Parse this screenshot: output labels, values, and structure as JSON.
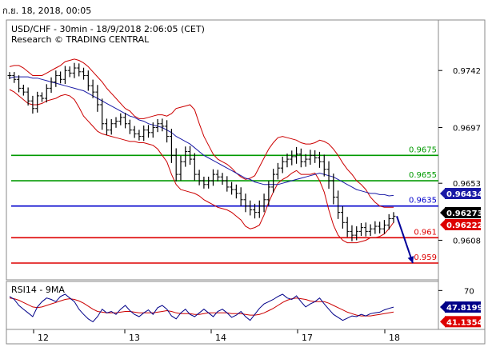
{
  "header": {
    "date_time": "ก.ย. 18, 2018, 00:05"
  },
  "legend": {
    "line1": "USD/CHF - 30min - 18/9/2018 2:06:05 (CET)",
    "line2": "Research © TRADING CENTRAL"
  },
  "colors": {
    "green_level": "#009900",
    "blue_level": "#0000cc",
    "red_level": "#dd0000",
    "bollinger": "#cc0000",
    "moving_average": "#1a1aa6",
    "rsi_line": "#000088",
    "rsi_ma": "#cc0000",
    "price_bars": "#000000",
    "arrow": "#000099"
  },
  "chart_data": {
    "type": "ohlc",
    "symbol": "USD/CHF",
    "timeframe": "30min",
    "ylim": [
      0.9578,
      0.978
    ],
    "y_ticks": [
      "0.9742",
      "0.9697",
      "0.9653",
      "0.9608"
    ],
    "x_ticks": [
      "12",
      "13",
      "14",
      "17",
      "18"
    ],
    "levels": [
      {
        "value": 0.9675,
        "label": "0.9675",
        "kind": "resistance",
        "color": "green"
      },
      {
        "value": 0.9655,
        "label": "0.9655",
        "kind": "resistance",
        "color": "green"
      },
      {
        "value": 0.9635,
        "label": "0.9635",
        "kind": "pivot",
        "color": "blue"
      },
      {
        "value": 0.961,
        "label": "0.961",
        "kind": "support",
        "color": "red"
      },
      {
        "value": 0.959,
        "label": "0.959",
        "kind": "support",
        "color": "red"
      }
    ],
    "price_badges": [
      {
        "value": 0.96434,
        "label": "0.96434",
        "series": "moving-average"
      },
      {
        "value": 0.96273,
        "label": "0.96273",
        "series": "last-price"
      },
      {
        "value": 0.96222,
        "label": "0.96222",
        "series": "lower-band"
      }
    ],
    "close": [
      0.9738,
      0.9735,
      0.9728,
      0.9725,
      0.9718,
      0.9712,
      0.9722,
      0.972,
      0.9728,
      0.9733,
      0.9738,
      0.9735,
      0.9742,
      0.974,
      0.9744,
      0.9741,
      0.9738,
      0.973,
      0.9725,
      0.9715,
      0.97,
      0.9695,
      0.97,
      0.9702,
      0.9705,
      0.97,
      0.9695,
      0.9692,
      0.969,
      0.9695,
      0.9693,
      0.9697,
      0.97,
      0.9698,
      0.969,
      0.9675,
      0.966,
      0.967,
      0.9678,
      0.9672,
      0.966,
      0.9655,
      0.9652,
      0.9655,
      0.966,
      0.9658,
      0.9655,
      0.965,
      0.9648,
      0.9645,
      0.964,
      0.9635,
      0.9632,
      0.963,
      0.9635,
      0.964,
      0.965,
      0.966,
      0.9665,
      0.967,
      0.9672,
      0.9674,
      0.9676,
      0.967,
      0.9672,
      0.9675,
      0.9673,
      0.967,
      0.9664,
      0.9655,
      0.9642,
      0.963,
      0.9622,
      0.9615,
      0.9612,
      0.9615,
      0.9618,
      0.9615,
      0.9617,
      0.9619,
      0.9617,
      0.962,
      0.9625,
      0.9627
    ],
    "range": [
      0.0007,
      0.0007,
      0.0008,
      0.0007,
      0.0009,
      0.001,
      0.0008,
      0.0007,
      0.0008,
      0.0009,
      0.001,
      0.0008,
      0.0009,
      0.0008,
      0.001,
      0.0009,
      0.0008,
      0.001,
      0.0012,
      0.0014,
      0.0012,
      0.001,
      0.0009,
      0.0008,
      0.0008,
      0.0009,
      0.0008,
      0.0008,
      0.0008,
      0.0009,
      0.001,
      0.001,
      0.0009,
      0.001,
      0.0012,
      0.0015,
      0.0014,
      0.0012,
      0.001,
      0.0011,
      0.0012,
      0.0009,
      0.0008,
      0.0008,
      0.001,
      0.0009,
      0.0008,
      0.0009,
      0.001,
      0.001,
      0.0012,
      0.0012,
      0.0011,
      0.0012,
      0.0011,
      0.0012,
      0.0012,
      0.0011,
      0.001,
      0.001,
      0.0011,
      0.0012,
      0.0014,
      0.0011,
      0.001,
      0.0011,
      0.001,
      0.0012,
      0.0014,
      0.0016,
      0.0014,
      0.0013,
      0.0012,
      0.0011,
      0.0012,
      0.001,
      0.0009,
      0.001,
      0.0009,
      0.001,
      0.0009,
      0.001,
      0.0009,
      0.0008
    ],
    "moving_average": [
      0.9736,
      0.9737,
      0.9737,
      0.9737,
      0.9737,
      0.9736,
      0.9736,
      0.9735,
      0.9734,
      0.9733,
      0.9732,
      0.9731,
      0.973,
      0.9729,
      0.9728,
      0.9727,
      0.9726,
      0.9724,
      0.9722,
      0.972,
      0.9718,
      0.9716,
      0.9714,
      0.9712,
      0.971,
      0.9708,
      0.9706,
      0.9705,
      0.9703,
      0.9702,
      0.97,
      0.9699,
      0.9698,
      0.9697,
      0.9695,
      0.9693,
      0.969,
      0.9688,
      0.9686,
      0.9684,
      0.9681,
      0.9678,
      0.9675,
      0.9673,
      0.9671,
      0.9669,
      0.9667,
      0.9665,
      0.9663,
      0.9661,
      0.9659,
      0.9657,
      0.9656,
      0.9654,
      0.9653,
      0.9652,
      0.9652,
      0.9652,
      0.9652,
      0.9653,
      0.9654,
      0.9655,
      0.9656,
      0.9657,
      0.9658,
      0.9659,
      0.966,
      0.9661,
      0.966,
      0.9659,
      0.9658,
      0.9656,
      0.9654,
      0.9652,
      0.965,
      0.9648,
      0.9647,
      0.9646,
      0.9645,
      0.9645,
      0.9644,
      0.9644,
      0.9643,
      0.96434
    ],
    "upper_band": [
      0.9745,
      0.9746,
      0.9746,
      0.9744,
      0.9741,
      0.9738,
      0.9738,
      0.9738,
      0.974,
      0.9742,
      0.9744,
      0.9746,
      0.9749,
      0.975,
      0.9751,
      0.975,
      0.9748,
      0.9745,
      0.9741,
      0.9737,
      0.9733,
      0.9728,
      0.9724,
      0.972,
      0.9716,
      0.9712,
      0.971,
      0.9706,
      0.9704,
      0.9704,
      0.9705,
      0.9706,
      0.9707,
      0.9707,
      0.9706,
      0.9708,
      0.9712,
      0.9713,
      0.9714,
      0.9715,
      0.9711,
      0.97,
      0.969,
      0.9683,
      0.9676,
      0.9672,
      0.967,
      0.9668,
      0.9665,
      0.9661,
      0.9658,
      0.9656,
      0.9657,
      0.9659,
      0.9666,
      0.9673,
      0.968,
      0.9685,
      0.9689,
      0.969,
      0.9689,
      0.9688,
      0.9687,
      0.9685,
      0.9684,
      0.9684,
      0.9685,
      0.9687,
      0.9686,
      0.9684,
      0.968,
      0.9675,
      0.9669,
      0.9664,
      0.966,
      0.9655,
      0.9652,
      0.9648,
      0.9642,
      0.9638,
      0.9635,
      0.9634,
      0.9634,
      0.9634
    ],
    "lower_band": [
      0.9727,
      0.9725,
      0.9722,
      0.9719,
      0.9716,
      0.9715,
      0.9715,
      0.9716,
      0.9718,
      0.9719,
      0.972,
      0.9722,
      0.9723,
      0.9722,
      0.9719,
      0.9713,
      0.9706,
      0.9702,
      0.9698,
      0.9694,
      0.9692,
      0.9691,
      0.969,
      0.9689,
      0.9688,
      0.9687,
      0.9686,
      0.9686,
      0.9685,
      0.9685,
      0.9684,
      0.9683,
      0.968,
      0.9675,
      0.967,
      0.966,
      0.9652,
      0.9648,
      0.9647,
      0.9646,
      0.9645,
      0.9643,
      0.964,
      0.9638,
      0.9636,
      0.9634,
      0.9633,
      0.9632,
      0.963,
      0.9627,
      0.9624,
      0.9619,
      0.9617,
      0.9618,
      0.962,
      0.9628,
      0.9638,
      0.9646,
      0.9653,
      0.9656,
      0.9658,
      0.9661,
      0.9663,
      0.966,
      0.966,
      0.966,
      0.9661,
      0.9655,
      0.9646,
      0.9632,
      0.962,
      0.9612,
      0.9608,
      0.9606,
      0.9606,
      0.9606,
      0.9607,
      0.9608,
      0.961,
      0.961,
      0.9611,
      0.9613,
      0.9617,
      0.96222
    ],
    "projection": {
      "from": 0.9627,
      "to": 0.959,
      "direction": "down"
    },
    "rsi": {
      "label": "RSI14 - 9MA",
      "ylim": [
        20,
        80
      ],
      "y_ticks": [
        "70"
      ],
      "value_label": "47.8199",
      "ma_value_label": "41.1354",
      "rsi_values": [
        62,
        58,
        50,
        45,
        40,
        35,
        48,
        55,
        60,
        58,
        55,
        62,
        65,
        60,
        55,
        45,
        38,
        32,
        28,
        35,
        45,
        40,
        42,
        38,
        45,
        50,
        43,
        38,
        35,
        40,
        44,
        38,
        47,
        50,
        45,
        36,
        32,
        40,
        45,
        38,
        35,
        40,
        45,
        40,
        35,
        42,
        45,
        40,
        34,
        37,
        42,
        35,
        30,
        38,
        46,
        52,
        55,
        58,
        62,
        65,
        60,
        58,
        63,
        55,
        48,
        52,
        55,
        60,
        52,
        45,
        38,
        34,
        30,
        33,
        36,
        35,
        38,
        36,
        39,
        40,
        41,
        44,
        46,
        47.8
      ],
      "ma_values": [
        60,
        59,
        57,
        54,
        51,
        48,
        47,
        48,
        50,
        52,
        54,
        56,
        58,
        59,
        58,
        56,
        53,
        49,
        45,
        42,
        41,
        40,
        40,
        40,
        41,
        42,
        42,
        41,
        40,
        40,
        40,
        40,
        41,
        42,
        43,
        42,
        40,
        39,
        39,
        39,
        38,
        38,
        39,
        40,
        40,
        40,
        40,
        40,
        39,
        39,
        39,
        38,
        37,
        37,
        38,
        40,
        43,
        46,
        50,
        54,
        57,
        59,
        60,
        59,
        58,
        56,
        55,
        55,
        55,
        53,
        50,
        47,
        44,
        41,
        39,
        37,
        36,
        36,
        36,
        37,
        38,
        39,
        40,
        41.1
      ]
    }
  }
}
